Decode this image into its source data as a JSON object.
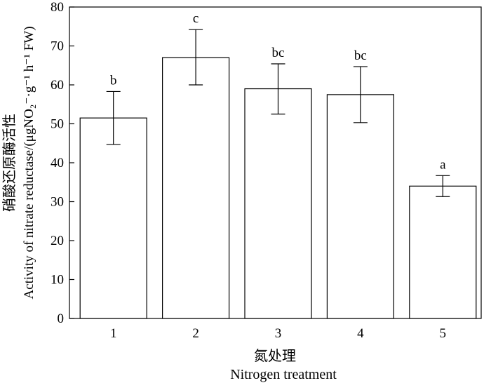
{
  "chart_data": {
    "type": "bar",
    "categories": [
      "1",
      "2",
      "3",
      "4",
      "5"
    ],
    "values": [
      51.5,
      67.0,
      59.0,
      57.5,
      34.0
    ],
    "error_low": [
      44.7,
      60.0,
      52.5,
      50.3,
      31.3
    ],
    "error_high": [
      58.3,
      74.2,
      65.4,
      64.7,
      36.7
    ],
    "significance_letters": [
      "b",
      "c",
      "bc",
      "bc",
      "a"
    ],
    "xlabel_cn": "氮处理",
    "xlabel_en": "Nitrogen treatment",
    "ylabel_cn": "硝酸还原酶活性",
    "ylabel_en": "Activity of nitrate reductase/(μgNO₂⁻·g⁻¹ h⁻¹ FW)",
    "ylim": [
      0,
      80
    ],
    "yticks": [
      "0",
      "10",
      "20",
      "30",
      "40",
      "50",
      "60",
      "70",
      "80"
    ],
    "grid": false,
    "legend": "none",
    "colors": {
      "bar_fill": "#ffffff",
      "stroke": "#000000"
    }
  }
}
